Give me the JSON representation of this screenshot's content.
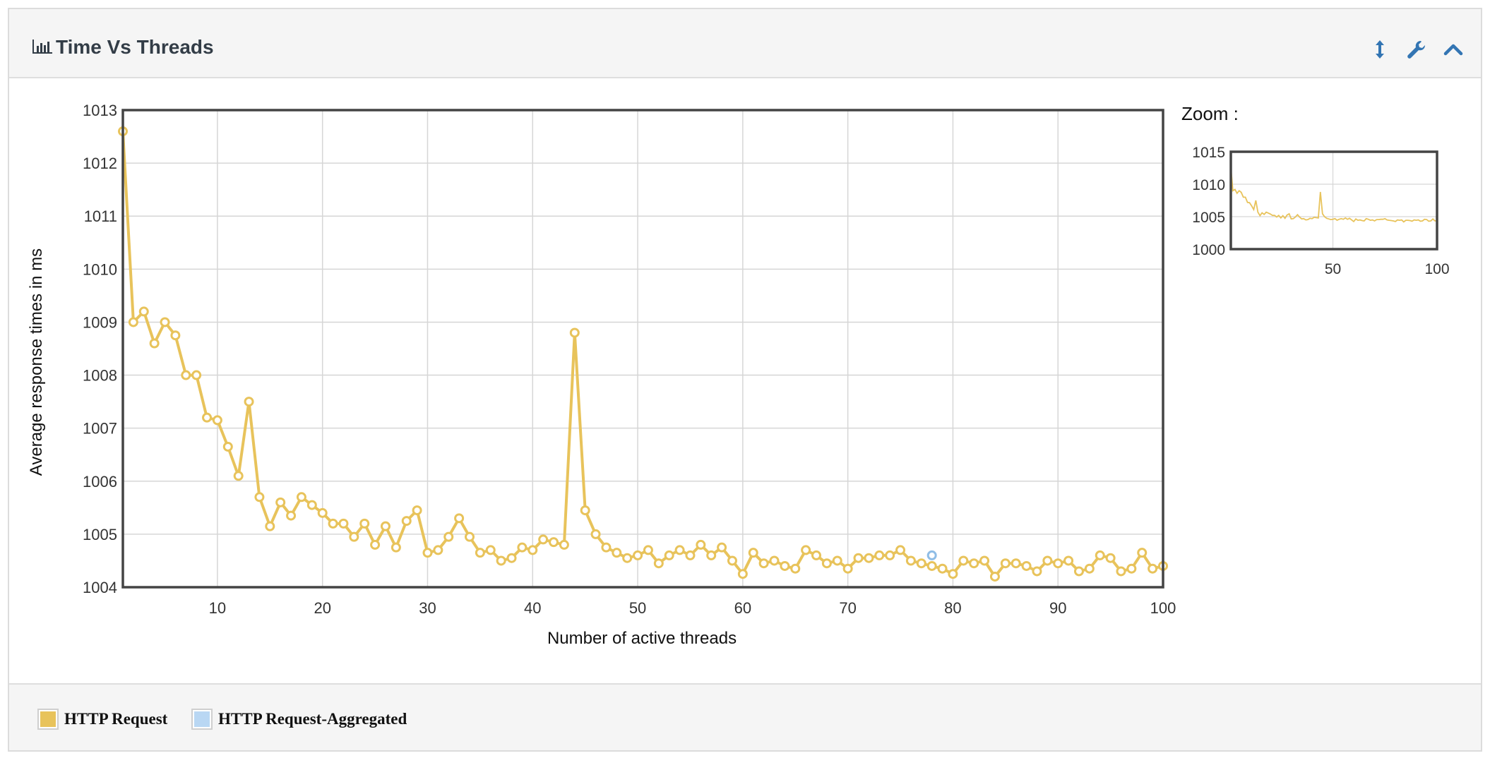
{
  "panel": {
    "title": "Time Vs Threads",
    "icons": [
      "bar-chart-icon",
      "resize-vertical-icon",
      "wrench-icon",
      "chevron-up-icon"
    ]
  },
  "zoom_label": "Zoom :",
  "colors": {
    "series_request": "#e8c35b",
    "series_aggregated": "#b9d7f3",
    "aggregated_marker": "#8fbde6",
    "accent": "#3375b3"
  },
  "chart_data": {
    "type": "line",
    "xlabel": "Number of active threads",
    "ylabel": "Average response times in ms",
    "xlim": [
      1,
      100
    ],
    "ylim": [
      1004,
      1013
    ],
    "x_ticks": [
      10,
      20,
      30,
      40,
      50,
      60,
      70,
      80,
      90,
      100
    ],
    "y_ticks": [
      1004,
      1005,
      1006,
      1007,
      1008,
      1009,
      1010,
      1011,
      1012,
      1013
    ],
    "grid": true,
    "legend_position": "bottom",
    "series": [
      {
        "name": "HTTP Request",
        "x": [
          1,
          2,
          3,
          4,
          5,
          6,
          7,
          8,
          9,
          10,
          11,
          12,
          13,
          14,
          15,
          16,
          17,
          18,
          19,
          20,
          21,
          22,
          23,
          24,
          25,
          26,
          27,
          28,
          29,
          30,
          31,
          32,
          33,
          34,
          35,
          36,
          37,
          38,
          39,
          40,
          41,
          42,
          43,
          44,
          45,
          46,
          47,
          48,
          49,
          50,
          51,
          52,
          53,
          54,
          55,
          56,
          57,
          58,
          59,
          60,
          61,
          62,
          63,
          64,
          65,
          66,
          67,
          68,
          69,
          70,
          71,
          72,
          73,
          74,
          75,
          76,
          77,
          78,
          79,
          80,
          81,
          82,
          83,
          84,
          85,
          86,
          87,
          88,
          89,
          90,
          91,
          92,
          93,
          94,
          95,
          96,
          97,
          98,
          99,
          100
        ],
        "values": [
          1012.6,
          1009.0,
          1009.2,
          1008.6,
          1009.0,
          1008.75,
          1008.0,
          1008.0,
          1007.2,
          1007.15,
          1006.65,
          1006.1,
          1007.5,
          1005.7,
          1005.15,
          1005.6,
          1005.35,
          1005.7,
          1005.55,
          1005.4,
          1005.2,
          1005.2,
          1004.95,
          1005.2,
          1004.8,
          1005.15,
          1004.75,
          1005.25,
          1005.45,
          1004.65,
          1004.7,
          1004.95,
          1005.3,
          1004.95,
          1004.65,
          1004.7,
          1004.5,
          1004.55,
          1004.75,
          1004.7,
          1004.9,
          1004.85,
          1004.8,
          1008.8,
          1005.45,
          1005.0,
          1004.75,
          1004.65,
          1004.55,
          1004.6,
          1004.7,
          1004.45,
          1004.6,
          1004.7,
          1004.6,
          1004.8,
          1004.6,
          1004.75,
          1004.5,
          1004.25,
          1004.65,
          1004.45,
          1004.5,
          1004.4,
          1004.35,
          1004.7,
          1004.6,
          1004.45,
          1004.5,
          1004.35,
          1004.55,
          1004.55,
          1004.6,
          1004.6,
          1004.7,
          1004.5,
          1004.45,
          1004.4,
          1004.35,
          1004.25,
          1004.5,
          1004.45,
          1004.5,
          1004.2,
          1004.45,
          1004.45,
          1004.4,
          1004.3,
          1004.5,
          1004.45,
          1004.5,
          1004.3,
          1004.35,
          1004.6,
          1004.55,
          1004.3,
          1004.35,
          1004.65,
          1004.35,
          1004.4
        ]
      },
      {
        "name": "HTTP Request-Aggregated",
        "x": [
          78
        ],
        "values": [
          1004.6
        ]
      }
    ]
  },
  "zoom_chart": {
    "xlim": [
      1,
      100
    ],
    "ylim": [
      1000,
      1015
    ],
    "x_ticks": [
      50,
      100
    ],
    "y_ticks": [
      1000,
      1005,
      1010,
      1015
    ]
  },
  "legend": {
    "items": [
      {
        "label": "HTTP Request",
        "color": "#e8c35b"
      },
      {
        "label": "HTTP Request-Aggregated",
        "color": "#b9d7f3"
      }
    ]
  }
}
